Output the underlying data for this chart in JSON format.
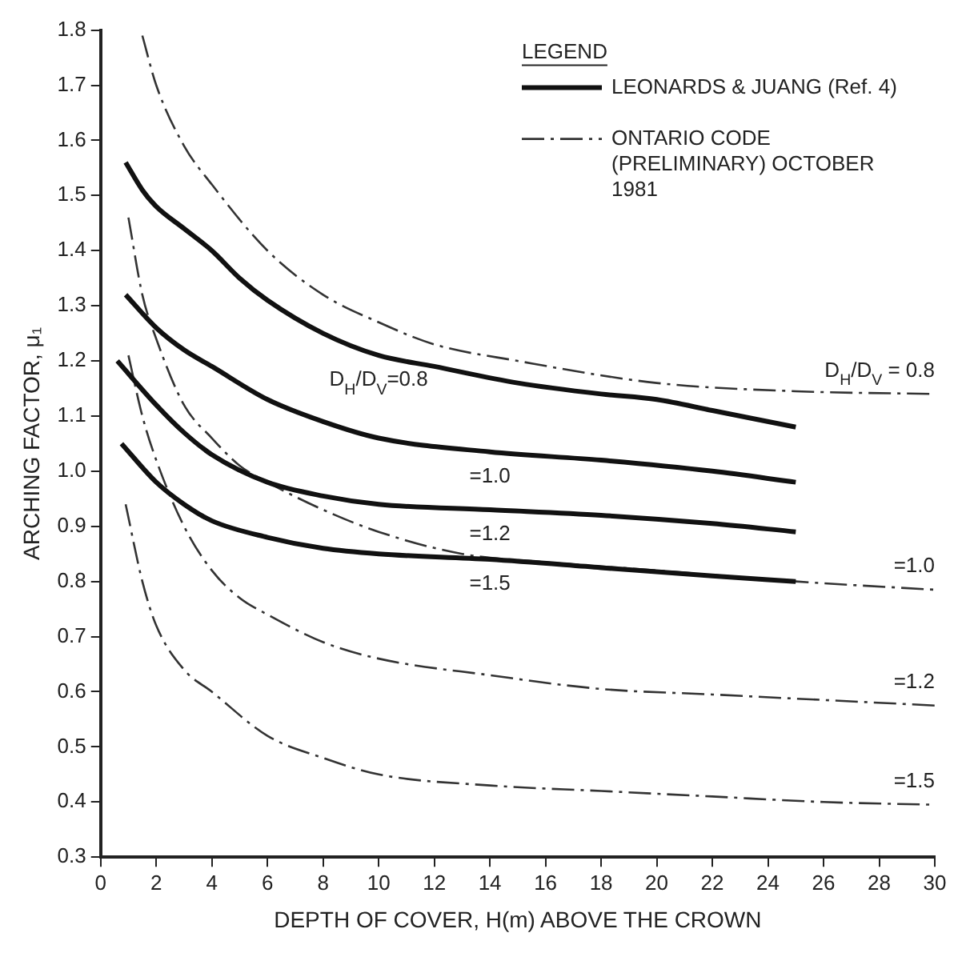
{
  "chart_data": {
    "type": "line",
    "xlabel": "DEPTH OF COVER, H(m) ABOVE THE CROWN",
    "ylabel": "ARCHING FACTOR, μ₁",
    "legend_title": "LEGEND",
    "legend": "top right",
    "grid": false,
    "marker": "none",
    "xlim": [
      0,
      30
    ],
    "xticks": [
      0,
      2,
      4,
      6,
      8,
      10,
      12,
      14,
      16,
      18,
      20,
      22,
      24,
      26,
      28,
      30
    ],
    "ylim": [
      0.3,
      1.8
    ],
    "yticks": [
      {
        "value": 0.3,
        "label": "0.3"
      },
      {
        "value": 0.4,
        "label": "0.4"
      },
      {
        "value": 0.5,
        "label": "0.5"
      },
      {
        "value": 0.6,
        "label": "0.6"
      },
      {
        "value": 0.7,
        "label": "0.7"
      },
      {
        "value": 0.8,
        "label": "0.8"
      },
      {
        "value": 0.9,
        "label": "0.9"
      },
      {
        "value": 1.0,
        "label": "1.0"
      },
      {
        "value": 1.1,
        "label": "1.1"
      },
      {
        "value": 1.2,
        "label": "1.2"
      },
      {
        "value": 1.3,
        "label": "1.3"
      },
      {
        "value": 1.4,
        "label": "1.4"
      },
      {
        "value": 1.5,
        "label": "1.5"
      },
      {
        "value": 1.6,
        "label": "1.6"
      },
      {
        "value": 1.7,
        "label": "1.7"
      },
      {
        "value": 1.8,
        "label": "1.8"
      }
    ],
    "series": [
      {
        "name": "LEONARDS & JUANG (Ref. 4)",
        "color": "#111111",
        "line_style": "solid",
        "x": [
          0.9,
          1.5,
          2,
          3,
          4,
          5,
          6,
          8,
          10,
          12,
          15,
          18,
          20,
          22,
          25
        ],
        "values": [
          1.56,
          1.51,
          1.48,
          1.44,
          1.4,
          1.35,
          1.31,
          1.25,
          1.21,
          1.19,
          1.16,
          1.14,
          1.13,
          1.11,
          1.08
        ]
      },
      {
        "color": "#111111",
        "line_style": "solid",
        "x": [
          0.9,
          2,
          3,
          4,
          6,
          8,
          10,
          14,
          18,
          22,
          25
        ],
        "values": [
          1.32,
          1.26,
          1.22,
          1.19,
          1.13,
          1.09,
          1.06,
          1.035,
          1.02,
          1.0,
          0.98
        ]
      },
      {
        "color": "#111111",
        "line_style": "solid",
        "x": [
          0.6,
          2,
          3,
          4,
          6,
          8,
          10,
          14,
          18,
          22,
          25
        ],
        "values": [
          1.2,
          1.12,
          1.07,
          1.03,
          0.98,
          0.955,
          0.94,
          0.93,
          0.92,
          0.905,
          0.89
        ]
      },
      {
        "color": "#111111",
        "line_style": "solid",
        "x": [
          0.75,
          2,
          3,
          4,
          6,
          8,
          10,
          14,
          18,
          22,
          25
        ],
        "values": [
          1.05,
          0.98,
          0.94,
          0.91,
          0.88,
          0.86,
          0.85,
          0.84,
          0.825,
          0.81,
          0.8
        ]
      },
      {
        "name": "ONTARIO CODE (PRELIMINARY) OCTOBER 1981",
        "color": "#333333",
        "line_style": "dashed",
        "x": [
          1.5,
          2,
          3,
          4,
          6,
          8,
          10,
          12,
          15,
          20,
          25,
          30
        ],
        "values": [
          1.79,
          1.7,
          1.59,
          1.52,
          1.4,
          1.32,
          1.27,
          1.23,
          1.2,
          1.16,
          1.145,
          1.14
        ]
      },
      {
        "color": "#333333",
        "line_style": "dashed",
        "x": [
          1.0,
          1.5,
          2,
          3,
          4,
          5,
          6,
          8,
          10,
          13,
          16,
          20,
          25,
          30
        ],
        "values": [
          1.46,
          1.32,
          1.24,
          1.12,
          1.06,
          1.01,
          0.98,
          0.93,
          0.89,
          0.85,
          0.835,
          0.82,
          0.8,
          0.785
        ]
      },
      {
        "color": "#333333",
        "line_style": "dashed",
        "x": [
          1.0,
          1.5,
          2,
          3,
          4,
          5,
          6,
          8,
          10,
          14,
          18,
          22,
          26,
          30
        ],
        "values": [
          1.21,
          1.1,
          1.02,
          0.9,
          0.82,
          0.77,
          0.74,
          0.69,
          0.66,
          0.63,
          0.605,
          0.595,
          0.585,
          0.575
        ]
      },
      {
        "color": "#333333",
        "line_style": "dashed",
        "x": [
          0.9,
          1.5,
          2,
          3,
          4,
          6,
          8,
          10,
          14,
          18,
          22,
          26,
          30
        ],
        "values": [
          0.94,
          0.8,
          0.72,
          0.64,
          0.6,
          0.52,
          0.48,
          0.45,
          0.43,
          0.42,
          0.41,
          0.4,
          0.395
        ]
      }
    ],
    "annotations": [
      {
        "text": "D$_{H}$/D$_{V}$=0.8",
        "x": 10,
        "y": 1.21
      },
      {
        "text": "=1.0",
        "x": 14,
        "y": 1.035
      },
      {
        "text": "=1.2",
        "x": 14,
        "y": 0.93
      },
      {
        "text": "=1.5",
        "x": 14,
        "y": 0.84
      },
      {
        "text": "D$_{H}$/D$_{V}$ = 0.8",
        "x": 30,
        "y": 1.14
      },
      {
        "text": "=1.0",
        "x": 30,
        "y": 0.785
      },
      {
        "text": "=1.2",
        "x": 30,
        "y": 0.575
      },
      {
        "text": "=1.5",
        "x": 30,
        "y": 0.395
      }
    ]
  }
}
